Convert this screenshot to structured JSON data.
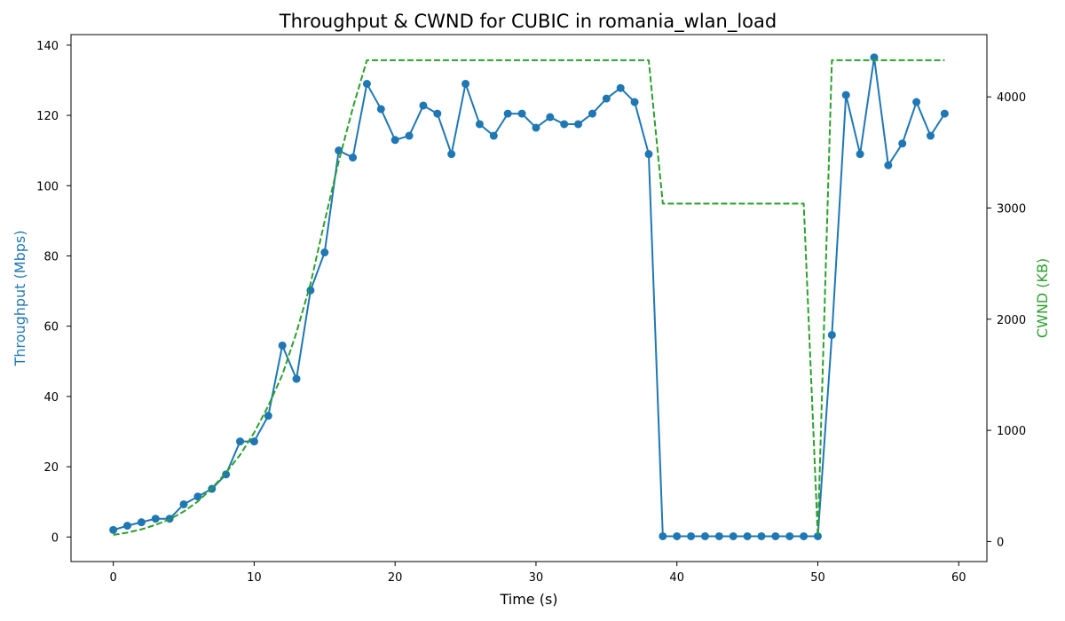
{
  "chart_data": {
    "type": "line",
    "title": "Throughput & CWND for CUBIC in romania_wlan_load",
    "xlabel": "Time (s)",
    "ylabel_left": "Throughput (Mbps)",
    "ylabel_right": "CWND (KB)",
    "xlim": [
      -3,
      62
    ],
    "ylim_left": [
      -7,
      143
    ],
    "ylim_right": [
      -180,
      4560
    ],
    "xticks": [
      0,
      10,
      20,
      30,
      40,
      50,
      60
    ],
    "yticks_left": [
      0,
      20,
      40,
      60,
      80,
      100,
      120,
      140
    ],
    "yticks_right": [
      0,
      1000,
      2000,
      3000,
      4000
    ],
    "grid": false,
    "colors": {
      "throughput": "#1f77b4",
      "cwnd": "#2ca02c",
      "axes": "#000000"
    },
    "series": [
      {
        "id": "throughput",
        "axis": "left",
        "style": "solid-markers",
        "x": [
          0,
          1,
          2,
          3,
          4,
          5,
          6,
          7,
          8,
          9,
          10,
          11,
          12,
          13,
          14,
          15,
          16,
          17,
          18,
          19,
          20,
          21,
          22,
          23,
          24,
          25,
          26,
          27,
          28,
          29,
          30,
          31,
          32,
          33,
          34,
          35,
          36,
          37,
          38,
          39,
          40,
          41,
          42,
          43,
          44,
          45,
          46,
          47,
          48,
          49,
          50,
          51,
          52,
          53,
          54,
          55,
          56,
          57,
          58,
          59
        ],
        "values": [
          2.0,
          3.2,
          4.2,
          5.2,
          5.2,
          9.3,
          11.5,
          13.7,
          17.8,
          27.2,
          27.2,
          34.5,
          54.5,
          45.0,
          70.2,
          81.0,
          110.0,
          108.0,
          129.0,
          121.8,
          113.0,
          114.2,
          122.8,
          120.5,
          109.0,
          129.0,
          117.5,
          114.2,
          120.5,
          120.5,
          116.5,
          119.5,
          117.5,
          117.5,
          120.5,
          124.8,
          127.8,
          123.8,
          109.0,
          0.2,
          0.2,
          0.2,
          0.2,
          0.2,
          0.2,
          0.2,
          0.2,
          0.2,
          0.2,
          0.2,
          0.2,
          57.5,
          125.8,
          109.0,
          136.5,
          105.8,
          112.0,
          123.8,
          114.2,
          120.5
        ]
      },
      {
        "id": "cwnd",
        "axis": "right",
        "style": "dashed",
        "x": [
          0,
          1,
          2,
          3,
          4,
          5,
          6,
          7,
          8,
          9,
          10,
          11,
          12,
          13,
          14,
          15,
          16,
          17,
          18,
          19,
          20,
          21,
          22,
          23,
          24,
          25,
          26,
          27,
          28,
          29,
          30,
          31,
          32,
          33,
          34,
          35,
          36,
          37,
          38,
          39,
          40,
          41,
          42,
          43,
          44,
          45,
          46,
          47,
          48,
          49,
          50,
          51,
          52,
          53,
          54,
          55,
          56,
          57,
          58,
          59
        ],
        "values": [
          60,
          80,
          110,
          150,
          200,
          270,
          360,
          480,
          620,
          780,
          980,
          1220,
          1500,
          1880,
          2320,
          2880,
          3420,
          3900,
          4330,
          4330,
          4330,
          4330,
          4330,
          4330,
          4330,
          4330,
          4330,
          4330,
          4330,
          4330,
          4330,
          4330,
          4330,
          4330,
          4330,
          4330,
          4330,
          4330,
          4330,
          3040,
          3040,
          3040,
          3040,
          3040,
          3040,
          3040,
          3040,
          3040,
          3040,
          3040,
          50,
          4330,
          4330,
          4330,
          4330,
          4330,
          4330,
          4330,
          4330,
          4330
        ]
      }
    ]
  }
}
